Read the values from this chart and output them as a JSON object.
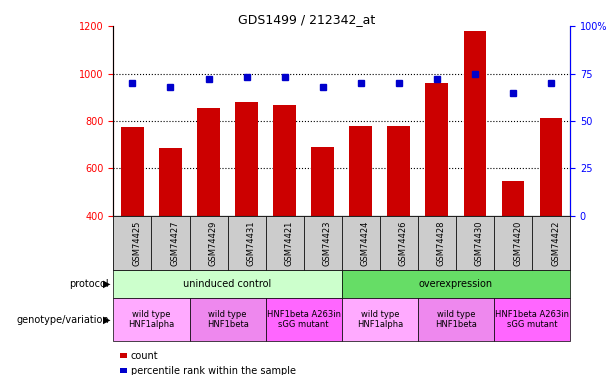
{
  "title": "GDS1499 / 212342_at",
  "samples": [
    "GSM74425",
    "GSM74427",
    "GSM74429",
    "GSM74431",
    "GSM74421",
    "GSM74423",
    "GSM74424",
    "GSM74426",
    "GSM74428",
    "GSM74430",
    "GSM74420",
    "GSM74422"
  ],
  "counts": [
    775,
    685,
    855,
    882,
    868,
    688,
    778,
    778,
    960,
    1180,
    548,
    812
  ],
  "percentiles": [
    70,
    68,
    72,
    73,
    73,
    68,
    70,
    70,
    72,
    75,
    65,
    70
  ],
  "bar_color": "#cc0000",
  "dot_color": "#0000cc",
  "ylim_left": [
    400,
    1200
  ],
  "ylim_right": [
    0,
    100
  ],
  "yticks_left": [
    400,
    600,
    800,
    1000,
    1200
  ],
  "yticks_right": [
    0,
    25,
    50,
    75,
    100
  ],
  "grid_values": [
    600,
    800,
    1000
  ],
  "protocol_groups": [
    {
      "label": "uninduced control",
      "start": 0,
      "end": 6,
      "color": "#ccffcc"
    },
    {
      "label": "overexpression",
      "start": 6,
      "end": 12,
      "color": "#66dd66"
    }
  ],
  "genotype_groups": [
    {
      "label": "wild type\nHNF1alpha",
      "start": 0,
      "end": 2,
      "color": "#ffaaff"
    },
    {
      "label": "wild type\nHNF1beta",
      "start": 2,
      "end": 4,
      "color": "#ee88ee"
    },
    {
      "label": "HNF1beta A263in\nsGG mutant",
      "start": 4,
      "end": 6,
      "color": "#ff66ff"
    },
    {
      "label": "wild type\nHNF1alpha",
      "start": 6,
      "end": 8,
      "color": "#ffaaff"
    },
    {
      "label": "wild type\nHNF1beta",
      "start": 8,
      "end": 10,
      "color": "#ee88ee"
    },
    {
      "label": "HNF1beta A263in\nsGG mutant",
      "start": 10,
      "end": 12,
      "color": "#ff66ff"
    }
  ],
  "protocol_label": "protocol",
  "genotype_label": "genotype/variation",
  "legend_count": "count",
  "legend_percentile": "percentile rank within the sample",
  "bar_width": 0.6,
  "xtick_bg_color": "#cccccc",
  "spine_color": "#000000"
}
